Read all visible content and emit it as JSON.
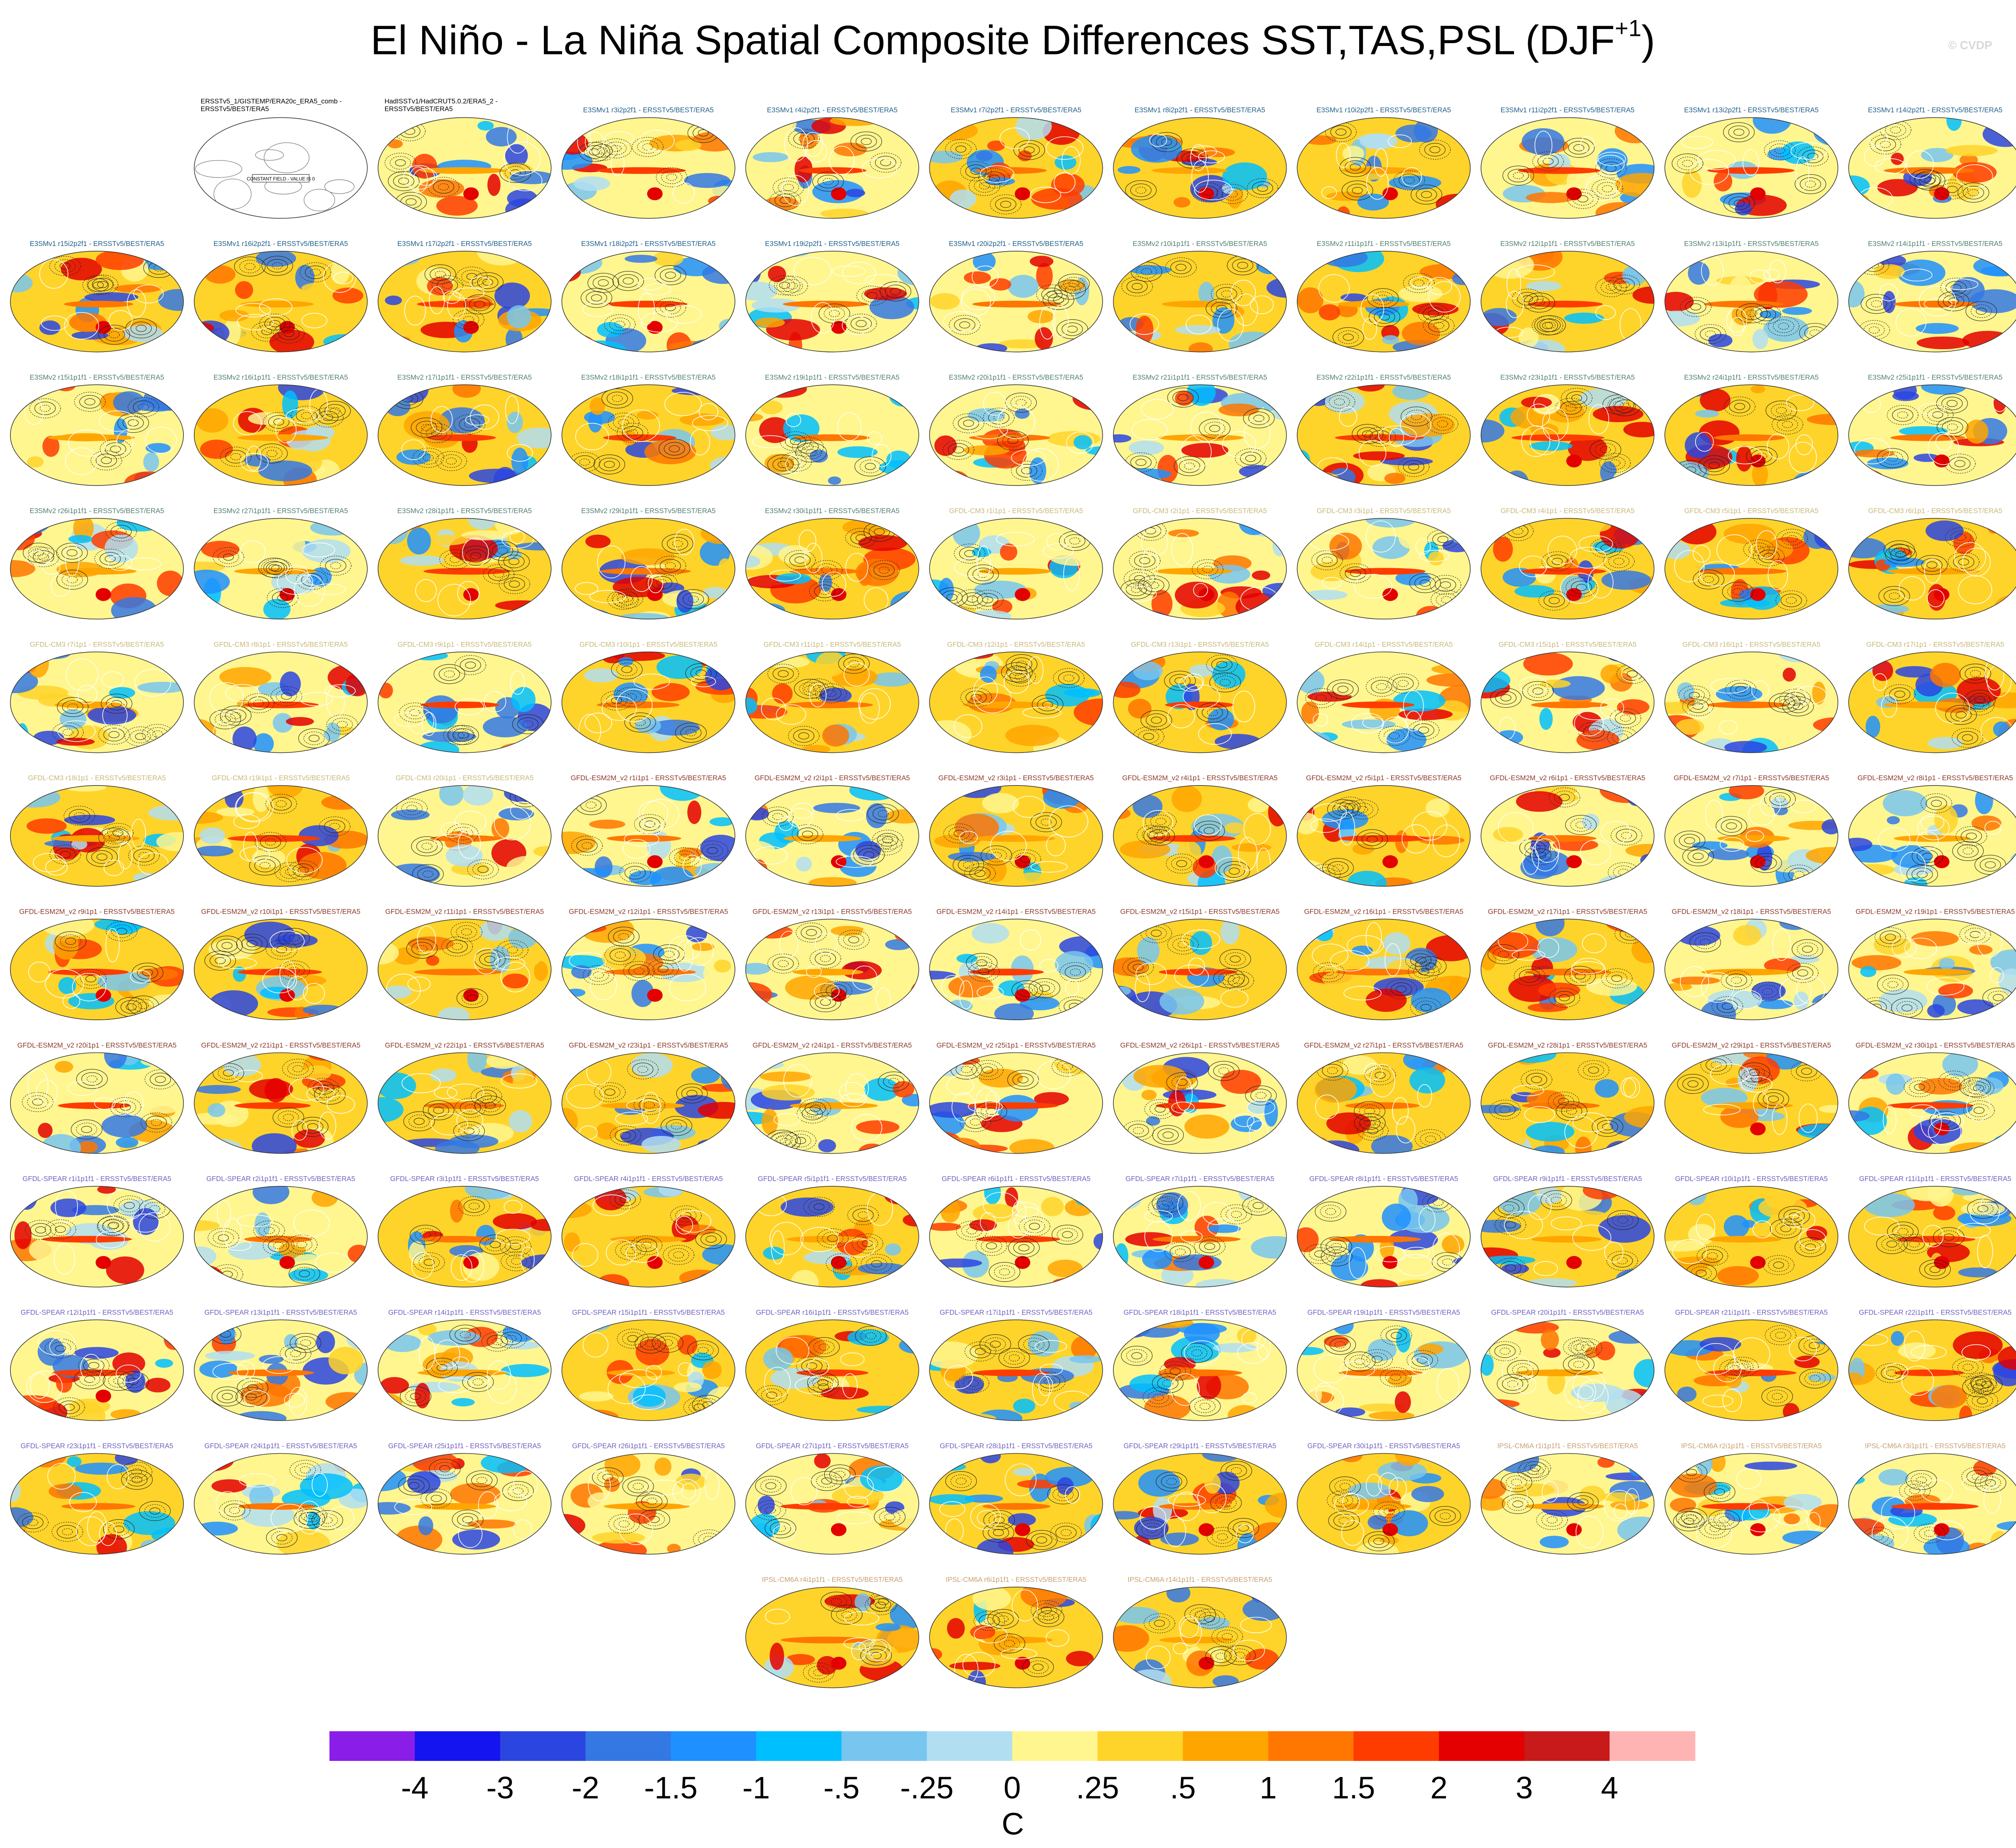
{
  "chart_data": {
    "type": "map-panels",
    "title": {
      "main": "El Niño - La Niña Spatial Composite Differences SST,TAS,PSL (DJF",
      "superscript": "+1",
      "end": ")"
    },
    "copyright": "© CVDP",
    "panels": [
      {
        "title": [
          "ERSSTv5_1/GISTEMP/ERA20c_ERA5_comb -",
          "ERSSTv5/BEST/ERA5"
        ],
        "color": "#000000",
        "note": "CONSTANT FIELD - VALUE IS 0"
      },
      {
        "title": [
          "HadISSTv1/HadCRUT5.0.2/ERA5_2 -",
          "ERSSTv5/BEST/ERA5"
        ],
        "color": "#000000"
      },
      {
        "title": "E3SMv1 r3i2p2f1 - ERSSTv5/BEST/ERA5",
        "color": "#1f5f8b"
      },
      {
        "title": "E3SMv1 r4i2p2f1 - ERSSTv5/BEST/ERA5",
        "color": "#1f5f8b"
      },
      {
        "title": "E3SMv1 r7i2p2f1 - ERSSTv5/BEST/ERA5",
        "color": "#1f5f8b"
      },
      {
        "title": "E3SMv1 r8i2p2f1 - ERSSTv5/BEST/ERA5",
        "color": "#1f5f8b"
      },
      {
        "title": "E3SMv1 r10i2p2f1 - ERSSTv5/BEST/ERA5",
        "color": "#1f5f8b"
      },
      {
        "title": "E3SMv1 r11i2p2f1 - ERSSTv5/BEST/ERA5",
        "color": "#1f5f8b"
      },
      {
        "title": "E3SMv1 r13i2p2f1 - ERSSTv5/BEST/ERA5",
        "color": "#1f5f8b"
      },
      {
        "title": "E3SMv1 r14i2p2f1 - ERSSTv5/BEST/ERA5",
        "color": "#1f5f8b"
      },
      {
        "title": "E3SMv1 r15i2p2f1 - ERSSTv5/BEST/ERA5",
        "color": "#1f5f8b"
      },
      {
        "title": "E3SMv1 r16i2p2f1 - ERSSTv5/BEST/ERA5",
        "color": "#1f5f8b"
      },
      {
        "title": "E3SMv1 r17i2p2f1 - ERSSTv5/BEST/ERA5",
        "color": "#1f5f8b"
      },
      {
        "title": "E3SMv1 r18i2p2f1 - ERSSTv5/BEST/ERA5",
        "color": "#1f5f8b"
      },
      {
        "title": "E3SMv1 r19i2p2f1 - ERSSTv5/BEST/ERA5",
        "color": "#1f5f8b"
      },
      {
        "title": "E3SMv1 r20i2p2f1 - ERSSTv5/BEST/ERA5",
        "color": "#1f5f8b"
      },
      {
        "title": "E3SMv2 r10i1p1f1 - ERSSTv5/BEST/ERA5",
        "color": "#4f7f6f"
      },
      {
        "title": "E3SMv2 r11i1p1f1 - ERSSTv5/BEST/ERA5",
        "color": "#4f7f6f"
      },
      {
        "title": "E3SMv2 r12i1p1f1 - ERSSTv5/BEST/ERA5",
        "color": "#4f7f6f"
      },
      {
        "title": "E3SMv2 r13i1p1f1 - ERSSTv5/BEST/ERA5",
        "color": "#4f7f6f"
      },
      {
        "title": "E3SMv2 r14i1p1f1 - ERSSTv5/BEST/ERA5",
        "color": "#4f7f6f"
      },
      {
        "title": "E3SMv2 r15i1p1f1 - ERSSTv5/BEST/ERA5",
        "color": "#4f7f6f"
      },
      {
        "title": "E3SMv2 r16i1p1f1 - ERSSTv5/BEST/ERA5",
        "color": "#4f7f6f"
      },
      {
        "title": "E3SMv2 r17i1p1f1 - ERSSTv5/BEST/ERA5",
        "color": "#4f7f6f"
      },
      {
        "title": "E3SMv2 r18i1p1f1 - ERSSTv5/BEST/ERA5",
        "color": "#4f7f6f"
      },
      {
        "title": "E3SMv2 r19i1p1f1 - ERSSTv5/BEST/ERA5",
        "color": "#4f7f6f"
      },
      {
        "title": "E3SMv2 r20i1p1f1 - ERSSTv5/BEST/ERA5",
        "color": "#4f7f6f"
      },
      {
        "title": "E3SMv2 r21i1p1f1 - ERSSTv5/BEST/ERA5",
        "color": "#4f7f6f"
      },
      {
        "title": "E3SMv2 r22i1p1f1 - ERSSTv5/BEST/ERA5",
        "color": "#4f7f6f"
      },
      {
        "title": "E3SMv2 r23i1p1f1 - ERSSTv5/BEST/ERA5",
        "color": "#4f7f6f"
      },
      {
        "title": "E3SMv2 r24i1p1f1 - ERSSTv5/BEST/ERA5",
        "color": "#4f7f6f"
      },
      {
        "title": "E3SMv2 r25i1p1f1 - ERSSTv5/BEST/ERA5",
        "color": "#4f7f6f"
      },
      {
        "title": "E3SMv2 r26i1p1f1 - ERSSTv5/BEST/ERA5",
        "color": "#4f7f6f"
      },
      {
        "title": "E3SMv2 r27i1p1f1 - ERSSTv5/BEST/ERA5",
        "color": "#4f7f6f"
      },
      {
        "title": "E3SMv2 r28i1p1f1 - ERSSTv5/BEST/ERA5",
        "color": "#4f7f6f"
      },
      {
        "title": "E3SMv2 r29i1p1f1 - ERSSTv5/BEST/ERA5",
        "color": "#4f7f6f"
      },
      {
        "title": "E3SMv2 r30i1p1f1 - ERSSTv5/BEST/ERA5",
        "color": "#4f7f6f"
      },
      {
        "title": "GFDL-CM3 r1i1p1 - ERSSTv5/BEST/ERA5",
        "color": "#c8b878"
      },
      {
        "title": "GFDL-CM3 r2i1p1 - ERSSTv5/BEST/ERA5",
        "color": "#c8b878"
      },
      {
        "title": "GFDL-CM3 r3i1p1 - ERSSTv5/BEST/ERA5",
        "color": "#c8b878"
      },
      {
        "title": "GFDL-CM3 r4i1p1 - ERSSTv5/BEST/ERA5",
        "color": "#c8b878"
      },
      {
        "title": "GFDL-CM3 r5i1p1 - ERSSTv5/BEST/ERA5",
        "color": "#c8b878"
      },
      {
        "title": "GFDL-CM3 r6i1p1 - ERSSTv5/BEST/ERA5",
        "color": "#c8b878"
      },
      {
        "title": "GFDL-CM3 r7i1p1 - ERSSTv5/BEST/ERA5",
        "color": "#c8b878"
      },
      {
        "title": "GFDL-CM3 r8i1p1 - ERSSTv5/BEST/ERA5",
        "color": "#c8b878"
      },
      {
        "title": "GFDL-CM3 r9i1p1 - ERSSTv5/BEST/ERA5",
        "color": "#c8b878"
      },
      {
        "title": "GFDL-CM3 r10i1p1 - ERSSTv5/BEST/ERA5",
        "color": "#c8b878"
      },
      {
        "title": "GFDL-CM3 r11i1p1 - ERSSTv5/BEST/ERA5",
        "color": "#c8b878"
      },
      {
        "title": "GFDL-CM3 r12i1p1 - ERSSTv5/BEST/ERA5",
        "color": "#c8b878"
      },
      {
        "title": "GFDL-CM3 r13i1p1 - ERSSTv5/BEST/ERA5",
        "color": "#c8b878"
      },
      {
        "title": "GFDL-CM3 r14i1p1 - ERSSTv5/BEST/ERA5",
        "color": "#c8b878"
      },
      {
        "title": "GFDL-CM3 r15i1p1 - ERSSTv5/BEST/ERA5",
        "color": "#c8b878"
      },
      {
        "title": "GFDL-CM3 r16i1p1 - ERSSTv5/BEST/ERA5",
        "color": "#c8b878"
      },
      {
        "title": "GFDL-CM3 r17i1p1 - ERSSTv5/BEST/ERA5",
        "color": "#c8b878"
      },
      {
        "title": "GFDL-CM3 r18i1p1 - ERSSTv5/BEST/ERA5",
        "color": "#c8b878"
      },
      {
        "title": "GFDL-CM3 r19i1p1 - ERSSTv5/BEST/ERA5",
        "color": "#c8b878"
      },
      {
        "title": "GFDL-CM3 r20i1p1 - ERSSTv5/BEST/ERA5",
        "color": "#c8b878"
      },
      {
        "title": "GFDL-ESM2M_v2 r1i1p1 - ERSSTv5/BEST/ERA5",
        "color": "#8b3a2a"
      },
      {
        "title": "GFDL-ESM2M_v2 r2i1p1 - ERSSTv5/BEST/ERA5",
        "color": "#8b3a2a"
      },
      {
        "title": "GFDL-ESM2M_v2 r3i1p1 - ERSSTv5/BEST/ERA5",
        "color": "#8b3a2a"
      },
      {
        "title": "GFDL-ESM2M_v2 r4i1p1 - ERSSTv5/BEST/ERA5",
        "color": "#8b3a2a"
      },
      {
        "title": "GFDL-ESM2M_v2 r5i1p1 - ERSSTv5/BEST/ERA5",
        "color": "#8b3a2a"
      },
      {
        "title": "GFDL-ESM2M_v2 r6i1p1 - ERSSTv5/BEST/ERA5",
        "color": "#8b3a2a"
      },
      {
        "title": "GFDL-ESM2M_v2 r7i1p1 - ERSSTv5/BEST/ERA5",
        "color": "#8b3a2a"
      },
      {
        "title": "GFDL-ESM2M_v2 r8i1p1 - ERSSTv5/BEST/ERA5",
        "color": "#8b3a2a"
      },
      {
        "title": "GFDL-ESM2M_v2 r9i1p1 - ERSSTv5/BEST/ERA5",
        "color": "#8b3a2a"
      },
      {
        "title": "GFDL-ESM2M_v2 r10i1p1 - ERSSTv5/BEST/ERA5",
        "color": "#8b3a2a"
      },
      {
        "title": "GFDL-ESM2M_v2 r11i1p1 - ERSSTv5/BEST/ERA5",
        "color": "#8b3a2a"
      },
      {
        "title": "GFDL-ESM2M_v2 r12i1p1 - ERSSTv5/BEST/ERA5",
        "color": "#8b3a2a"
      },
      {
        "title": "GFDL-ESM2M_v2 r13i1p1 - ERSSTv5/BEST/ERA5",
        "color": "#8b3a2a"
      },
      {
        "title": "GFDL-ESM2M_v2 r14i1p1 - ERSSTv5/BEST/ERA5",
        "color": "#8b3a2a"
      },
      {
        "title": "GFDL-ESM2M_v2 r15i1p1 - ERSSTv5/BEST/ERA5",
        "color": "#8b3a2a"
      },
      {
        "title": "GFDL-ESM2M_v2 r16i1p1 - ERSSTv5/BEST/ERA5",
        "color": "#8b3a2a"
      },
      {
        "title": "GFDL-ESM2M_v2 r17i1p1 - ERSSTv5/BEST/ERA5",
        "color": "#8b3a2a"
      },
      {
        "title": "GFDL-ESM2M_v2 r18i1p1 - ERSSTv5/BEST/ERA5",
        "color": "#8b3a2a"
      },
      {
        "title": "GFDL-ESM2M_v2 r19i1p1 - ERSSTv5/BEST/ERA5",
        "color": "#8b3a2a"
      },
      {
        "title": "GFDL-ESM2M_v2 r20i1p1 - ERSSTv5/BEST/ERA5",
        "color": "#8b3a2a"
      },
      {
        "title": "GFDL-ESM2M_v2 r21i1p1 - ERSSTv5/BEST/ERA5",
        "color": "#8b3a2a"
      },
      {
        "title": "GFDL-ESM2M_v2 r22i1p1 - ERSSTv5/BEST/ERA5",
        "color": "#8b3a2a"
      },
      {
        "title": "GFDL-ESM2M_v2 r23i1p1 - ERSSTv5/BEST/ERA5",
        "color": "#8b3a2a"
      },
      {
        "title": "GFDL-ESM2M_v2 r24i1p1 - ERSSTv5/BEST/ERA5",
        "color": "#8b3a2a"
      },
      {
        "title": "GFDL-ESM2M_v2 r25i1p1 - ERSSTv5/BEST/ERA5",
        "color": "#8b3a2a"
      },
      {
        "title": "GFDL-ESM2M_v2 r26i1p1 - ERSSTv5/BEST/ERA5",
        "color": "#8b3a2a"
      },
      {
        "title": "GFDL-ESM2M_v2 r27i1p1 - ERSSTv5/BEST/ERA5",
        "color": "#8b3a2a"
      },
      {
        "title": "GFDL-ESM2M_v2 r28i1p1 - ERSSTv5/BEST/ERA5",
        "color": "#8b3a2a"
      },
      {
        "title": "GFDL-ESM2M_v2 r29i1p1 - ERSSTv5/BEST/ERA5",
        "color": "#8b3a2a"
      },
      {
        "title": "GFDL-ESM2M_v2 r30i1p1 - ERSSTv5/BEST/ERA5",
        "color": "#8b3a2a"
      },
      {
        "title": "GFDL-SPEAR r1i1p1f1 - ERSSTv5/BEST/ERA5",
        "color": "#7060c0"
      },
      {
        "title": "GFDL-SPEAR r2i1p1f1 - ERSSTv5/BEST/ERA5",
        "color": "#7060c0"
      },
      {
        "title": "GFDL-SPEAR r3i1p1f1 - ERSSTv5/BEST/ERA5",
        "color": "#7060c0"
      },
      {
        "title": "GFDL-SPEAR r4i1p1f1 - ERSSTv5/BEST/ERA5",
        "color": "#7060c0"
      },
      {
        "title": "GFDL-SPEAR r5i1p1f1 - ERSSTv5/BEST/ERA5",
        "color": "#7060c0"
      },
      {
        "title": "GFDL-SPEAR r6i1p1f1 - ERSSTv5/BEST/ERA5",
        "color": "#7060c0"
      },
      {
        "title": "GFDL-SPEAR r7i1p1f1 - ERSSTv5/BEST/ERA5",
        "color": "#7060c0"
      },
      {
        "title": "GFDL-SPEAR r8i1p1f1 - ERSSTv5/BEST/ERA5",
        "color": "#7060c0"
      },
      {
        "title": "GFDL-SPEAR r9i1p1f1 - ERSSTv5/BEST/ERA5",
        "color": "#7060c0"
      },
      {
        "title": "GFDL-SPEAR r10i1p1f1 - ERSSTv5/BEST/ERA5",
        "color": "#7060c0"
      },
      {
        "title": "GFDL-SPEAR r11i1p1f1 - ERSSTv5/BEST/ERA5",
        "color": "#7060c0"
      },
      {
        "title": "GFDL-SPEAR r12i1p1f1 - ERSSTv5/BEST/ERA5",
        "color": "#7060c0"
      },
      {
        "title": "GFDL-SPEAR r13i1p1f1 - ERSSTv5/BEST/ERA5",
        "color": "#7060c0"
      },
      {
        "title": "GFDL-SPEAR r14i1p1f1 - ERSSTv5/BEST/ERA5",
        "color": "#7060c0"
      },
      {
        "title": "GFDL-SPEAR r15i1p1f1 - ERSSTv5/BEST/ERA5",
        "color": "#7060c0"
      },
      {
        "title": "GFDL-SPEAR r16i1p1f1 - ERSSTv5/BEST/ERA5",
        "color": "#7060c0"
      },
      {
        "title": "GFDL-SPEAR r17i1p1f1 - ERSSTv5/BEST/ERA5",
        "color": "#7060c0"
      },
      {
        "title": "GFDL-SPEAR r18i1p1f1 - ERSSTv5/BEST/ERA5",
        "color": "#7060c0"
      },
      {
        "title": "GFDL-SPEAR r19i1p1f1 - ERSSTv5/BEST/ERA5",
        "color": "#7060c0"
      },
      {
        "title": "GFDL-SPEAR r20i1p1f1 - ERSSTv5/BEST/ERA5",
        "color": "#7060c0"
      },
      {
        "title": "GFDL-SPEAR r21i1p1f1 - ERSSTv5/BEST/ERA5",
        "color": "#7060c0"
      },
      {
        "title": "GFDL-SPEAR r22i1p1f1 - ERSSTv5/BEST/ERA5",
        "color": "#7060c0"
      },
      {
        "title": "GFDL-SPEAR r23i1p1f1 - ERSSTv5/BEST/ERA5",
        "color": "#7060c0"
      },
      {
        "title": "GFDL-SPEAR r24i1p1f1 - ERSSTv5/BEST/ERA5",
        "color": "#7060c0"
      },
      {
        "title": "GFDL-SPEAR r25i1p1f1 - ERSSTv5/BEST/ERA5",
        "color": "#7060c0"
      },
      {
        "title": "GFDL-SPEAR r26i1p1f1 - ERSSTv5/BEST/ERA5",
        "color": "#7060c0"
      },
      {
        "title": "GFDL-SPEAR r27i1p1f1 - ERSSTv5/BEST/ERA5",
        "color": "#7060c0"
      },
      {
        "title": "GFDL-SPEAR r28i1p1f1 - ERSSTv5/BEST/ERA5",
        "color": "#7060c0"
      },
      {
        "title": "GFDL-SPEAR r29i1p1f1 - ERSSTv5/BEST/ERA5",
        "color": "#7060c0"
      },
      {
        "title": "GFDL-SPEAR r30i1p1f1 - ERSSTv5/BEST/ERA5",
        "color": "#7060c0"
      },
      {
        "title": "IPSL-CM6A r1i1p1f1 - ERSSTv5/BEST/ERA5",
        "color": "#c8a070"
      },
      {
        "title": "IPSL-CM6A r2i1p1f1 - ERSSTv5/BEST/ERA5",
        "color": "#c8a070"
      },
      {
        "title": "IPSL-CM6A r3i1p1f1 - ERSSTv5/BEST/ERA5",
        "color": "#c8a070"
      },
      {
        "title": "IPSL-CM6A r4i1p1f1 - ERSSTv5/BEST/ERA5",
        "color": "#c8a070"
      },
      {
        "title": "IPSL-CM6A r6i1p1f1 - ERSSTv5/BEST/ERA5",
        "color": "#c8a070"
      },
      {
        "title": "IPSL-CM6A r14i1p1f1 - ERSSTv5/BEST/ERA5",
        "color": "#c8a070"
      }
    ],
    "colorbar": {
      "colors": [
        "#8a1ee8",
        "#1414f0",
        "#2b45e0",
        "#3478e4",
        "#1e90ff",
        "#00bfff",
        "#78c6f0",
        "#b2def2",
        "#fff68f",
        "#ffd42a",
        "#ffa500",
        "#ff7600",
        "#ff3c00",
        "#e40000",
        "#c81a1a",
        "#ffb4b4"
      ],
      "ticks": [
        -4,
        -3,
        -2,
        {
          "value": -1.5,
          "label": "-1.5"
        },
        -1,
        {
          "value": -0.5,
          "label": "-.5"
        },
        {
          "value": -0.25,
          "label": "-.25"
        },
        0,
        {
          "value": 0.25,
          "label": ".25"
        },
        {
          "value": 0.5,
          "label": ".5"
        },
        1,
        {
          "value": 1.5,
          "label": "1.5"
        },
        2,
        3,
        4
      ],
      "label": "C"
    }
  }
}
